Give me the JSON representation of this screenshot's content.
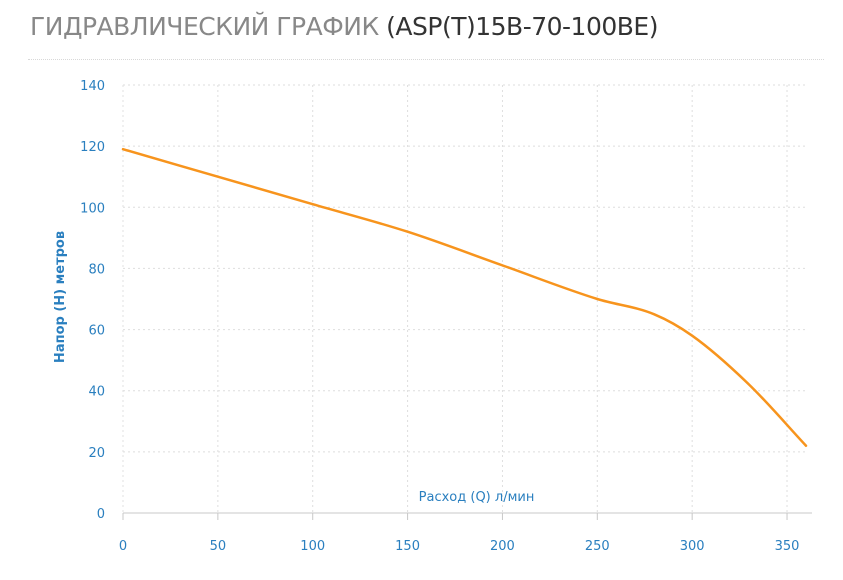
{
  "title": {
    "main": "ГИДРАВЛИЧЕСКИЙ ГРАФИК",
    "model": "(ASP(T)15B-70-100BE)"
  },
  "colors": {
    "curve": "#f7941d",
    "axis_text": "#2a7fbf",
    "grid": "#dedede",
    "title": "#888888",
    "title_model": "#333333"
  },
  "chart_data": {
    "type": "line",
    "xlabel": "Расход (Q) л/мин",
    "ylabel": "Напор (Н) метров",
    "xlim": [
      0,
      360
    ],
    "ylim": [
      0,
      140
    ],
    "x_ticks": [
      "0",
      "50",
      "100",
      "150",
      "200",
      "250",
      "300",
      "350"
    ],
    "y_ticks": [
      "0",
      "20",
      "40",
      "60",
      "80",
      "100",
      "120",
      "140"
    ],
    "grid": true,
    "series": [
      {
        "x": [
          0,
          50,
          100,
          150,
          200,
          250,
          280,
          300,
          330,
          360
        ],
        "y": [
          119,
          110,
          101,
          92,
          81,
          70,
          65,
          58,
          42,
          22
        ]
      }
    ]
  }
}
